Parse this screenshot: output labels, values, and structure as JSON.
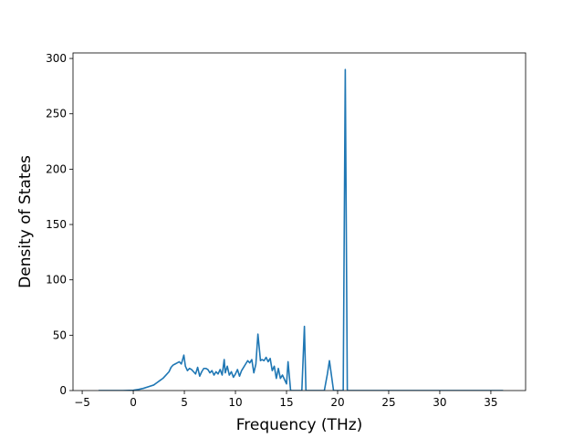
{
  "chart_data": {
    "type": "line",
    "xlabel": "Frequency (THz)",
    "ylabel": "Density of States",
    "xlim": [
      -5.9,
      38.4
    ],
    "ylim": [
      0,
      305
    ],
    "x_ticks": [
      -5,
      0,
      5,
      10,
      15,
      20,
      25,
      30,
      35
    ],
    "y_ticks": [
      0,
      50,
      100,
      150,
      200,
      250,
      300
    ],
    "grid": false,
    "line_color": "#1f77b4",
    "series": [
      {
        "x": [
          -3.4,
          -2.0,
          -1.0,
          0.0,
          0.5,
          1.0,
          1.5,
          2.0,
          2.3,
          2.6,
          2.9,
          3.2,
          3.5,
          3.7,
          3.9,
          4.1,
          4.3,
          4.5,
          4.7,
          4.8,
          4.95,
          5.1,
          5.3,
          5.5,
          5.7,
          5.9,
          6.1,
          6.3,
          6.5,
          6.7,
          6.9,
          7.1,
          7.3,
          7.5,
          7.7,
          7.9,
          8.1,
          8.3,
          8.5,
          8.7,
          8.9,
          9.0,
          9.2,
          9.4,
          9.6,
          9.8,
          10.0,
          10.2,
          10.4,
          10.6,
          10.8,
          11.0,
          11.2,
          11.4,
          11.6,
          11.8,
          12.0,
          12.2,
          12.45,
          12.6,
          12.8,
          13.0,
          13.2,
          13.4,
          13.6,
          13.8,
          14.0,
          14.2,
          14.4,
          14.6,
          14.8,
          15.0,
          15.15,
          15.4,
          16.0,
          16.5,
          16.75,
          16.9,
          17.3,
          18.0,
          18.7,
          19.0,
          19.2,
          19.6,
          20.2,
          20.55,
          20.75,
          20.95,
          21.2,
          22.0,
          25.0,
          30.0,
          35.0,
          36.2
        ],
        "y": [
          0,
          0,
          0,
          0.3,
          1,
          2,
          3.5,
          5,
          7,
          9,
          11,
          14,
          17,
          21,
          23,
          24,
          25,
          26,
          24,
          27,
          32,
          22,
          18,
          20,
          19,
          17,
          15,
          21,
          13,
          17,
          20,
          20,
          19,
          16,
          18,
          14,
          17,
          15,
          19,
          14,
          28,
          16,
          22,
          14,
          17,
          12,
          15,
          19,
          13,
          18,
          21,
          24,
          27,
          25,
          28,
          16,
          24,
          51,
          27,
          28,
          27,
          30,
          26,
          29,
          18,
          22,
          11,
          20,
          11,
          14,
          10,
          6,
          26,
          0,
          0,
          0,
          58,
          0,
          0,
          0,
          0,
          15,
          27,
          0,
          0,
          0,
          290,
          0,
          0,
          0,
          0,
          0,
          0,
          0
        ]
      }
    ]
  }
}
